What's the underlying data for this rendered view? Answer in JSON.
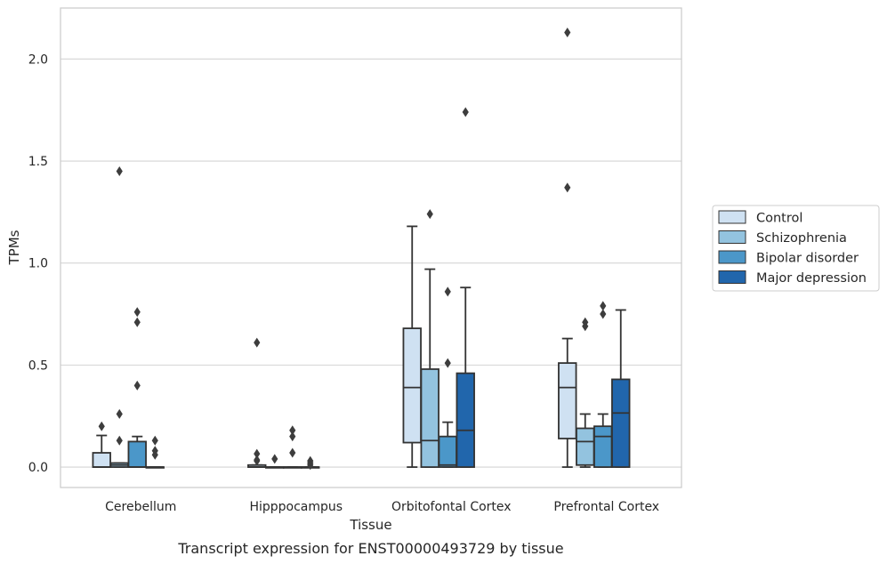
{
  "chart_data": {
    "type": "box",
    "caption": "Transcript expression for ENST00000493729 by tissue",
    "xlabel": "Tissue",
    "ylabel": "TPMs",
    "ylim": [
      -0.1,
      2.25
    ],
    "yticks": [
      "0.0",
      "0.5",
      "1.0",
      "1.5",
      "2.0"
    ],
    "grid": "horizontal",
    "legend_position": "right",
    "categories": [
      "Cerebellum",
      "Hipppocampus",
      "Orbitofontal Cortex",
      "Prefrontal Cortex"
    ],
    "series": [
      {
        "name": "Control",
        "color": "#cfe1f2",
        "boxes": [
          {
            "q1": 0.0,
            "median": 0.0,
            "q3": 0.07,
            "whisker_low": 0.0,
            "whisker_high": 0.155,
            "outliers": [
              0.2
            ]
          },
          {
            "q1": 0.0,
            "median": 0.0,
            "q3": 0.01,
            "whisker_low": 0.0,
            "whisker_high": 0.01,
            "outliers": [
              0.61,
              0.065,
              0.035,
              0.03
            ]
          },
          {
            "q1": 0.12,
            "median": 0.39,
            "q3": 0.68,
            "whisker_low": 0.0,
            "whisker_high": 1.18,
            "outliers": []
          },
          {
            "q1": 0.14,
            "median": 0.39,
            "q3": 0.51,
            "whisker_low": 0.0,
            "whisker_high": 0.63,
            "outliers": [
              1.37,
              2.13
            ]
          }
        ]
      },
      {
        "name": "Schizophrenia",
        "color": "#93c3df",
        "boxes": [
          {
            "q1": 0.0,
            "median": 0.01,
            "q3": 0.02,
            "whisker_low": 0.0,
            "whisker_high": 0.02,
            "outliers": [
              1.45,
              0.26,
              0.13
            ]
          },
          {
            "q1": 0.0,
            "median": 0.0,
            "q3": 0.0,
            "whisker_low": 0.0,
            "whisker_high": 0.0,
            "outliers": [
              0.04
            ]
          },
          {
            "q1": 0.0,
            "median": 0.13,
            "q3": 0.48,
            "whisker_low": 0.0,
            "whisker_high": 0.97,
            "outliers": [
              1.24
            ]
          },
          {
            "q1": 0.01,
            "median": 0.125,
            "q3": 0.19,
            "whisker_low": 0.0,
            "whisker_high": 0.26,
            "outliers": [
              0.69,
              0.71
            ]
          }
        ]
      },
      {
        "name": "Bipolar disorder",
        "color": "#4b97c9",
        "boxes": [
          {
            "q1": 0.0,
            "median": 0.0,
            "q3": 0.125,
            "whisker_low": 0.0,
            "whisker_high": 0.15,
            "outliers": [
              0.76,
              0.71,
              0.4
            ]
          },
          {
            "q1": 0.0,
            "median": 0.0,
            "q3": 0.0,
            "whisker_low": 0.0,
            "whisker_high": 0.0,
            "outliers": [
              0.18,
              0.15,
              0.07
            ]
          },
          {
            "q1": 0.0,
            "median": 0.01,
            "q3": 0.15,
            "whisker_low": 0.0,
            "whisker_high": 0.22,
            "outliers": [
              0.86,
              0.51
            ]
          },
          {
            "q1": 0.0,
            "median": 0.15,
            "q3": 0.2,
            "whisker_low": 0.0,
            "whisker_high": 0.26,
            "outliers": [
              0.79,
              0.75
            ]
          }
        ]
      },
      {
        "name": "Major depression",
        "color": "#2166ac",
        "boxes": [
          {
            "q1": 0.0,
            "median": 0.0,
            "q3": 0.0,
            "whisker_low": 0.0,
            "whisker_high": 0.0,
            "outliers": [
              0.13,
              0.08,
              0.06
            ]
          },
          {
            "q1": 0.0,
            "median": 0.0,
            "q3": 0.0,
            "whisker_low": 0.0,
            "whisker_high": 0.0,
            "outliers": [
              0.03,
              0.02,
              0.01
            ]
          },
          {
            "q1": 0.0,
            "median": 0.18,
            "q3": 0.46,
            "whisker_low": 0.0,
            "whisker_high": 0.88,
            "outliers": [
              1.74
            ]
          },
          {
            "q1": 0.0,
            "median": 0.265,
            "q3": 0.43,
            "whisker_low": 0.0,
            "whisker_high": 0.77,
            "outliers": []
          }
        ]
      }
    ]
  }
}
